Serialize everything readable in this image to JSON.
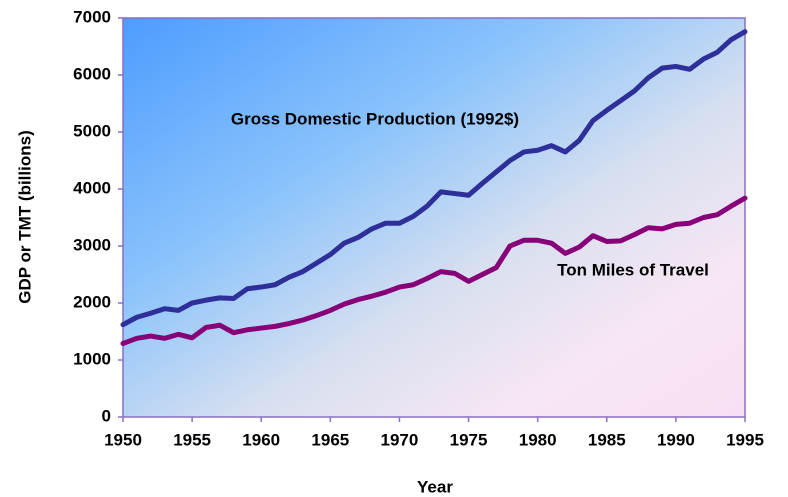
{
  "chart_data": {
    "type": "line",
    "xlabel": "Year",
    "ylabel": "GDP or TMT (billions)",
    "x": [
      1950,
      1951,
      1952,
      1953,
      1954,
      1955,
      1956,
      1957,
      1958,
      1959,
      1960,
      1961,
      1962,
      1963,
      1964,
      1965,
      1966,
      1967,
      1968,
      1969,
      1970,
      1971,
      1972,
      1973,
      1974,
      1975,
      1976,
      1977,
      1978,
      1979,
      1980,
      1981,
      1982,
      1983,
      1984,
      1985,
      1986,
      1987,
      1988,
      1989,
      1990,
      1991,
      1992,
      1993,
      1994,
      1995
    ],
    "series": [
      {
        "name": "Gross Domestic Production (1992$)",
        "color": "#2f2f9a",
        "values": [
          1620,
          1750,
          1820,
          1900,
          1870,
          2000,
          2050,
          2090,
          2080,
          2250,
          2280,
          2320,
          2450,
          2550,
          2700,
          2850,
          3050,
          3150,
          3300,
          3400,
          3400,
          3520,
          3700,
          3950,
          3920,
          3890,
          4100,
          4300,
          4500,
          4650,
          4680,
          4760,
          4650,
          4850,
          5200,
          5380,
          5550,
          5720,
          5950,
          6120,
          6150,
          6100,
          6280,
          6400,
          6620,
          6760
        ]
      },
      {
        "name": "Ton Miles of Travel",
        "color": "#880078",
        "values": [
          1290,
          1380,
          1420,
          1380,
          1450,
          1390,
          1570,
          1610,
          1480,
          1530,
          1560,
          1590,
          1640,
          1700,
          1780,
          1870,
          1980,
          2060,
          2120,
          2190,
          2280,
          2320,
          2430,
          2550,
          2520,
          2380,
          2500,
          2620,
          3000,
          3100,
          3100,
          3050,
          2870,
          2980,
          3180,
          3080,
          3090,
          3200,
          3320,
          3300,
          3380,
          3400,
          3500,
          3550,
          3700,
          3840
        ]
      }
    ],
    "xlim": [
      1950,
      1995
    ],
    "xticks": [
      1950,
      1955,
      1960,
      1965,
      1970,
      1975,
      1980,
      1985,
      1990,
      1995
    ],
    "ylim": [
      0,
      7000
    ],
    "yticks": [
      0,
      1000,
      2000,
      3000,
      4000,
      5000,
      6000,
      7000
    ]
  }
}
